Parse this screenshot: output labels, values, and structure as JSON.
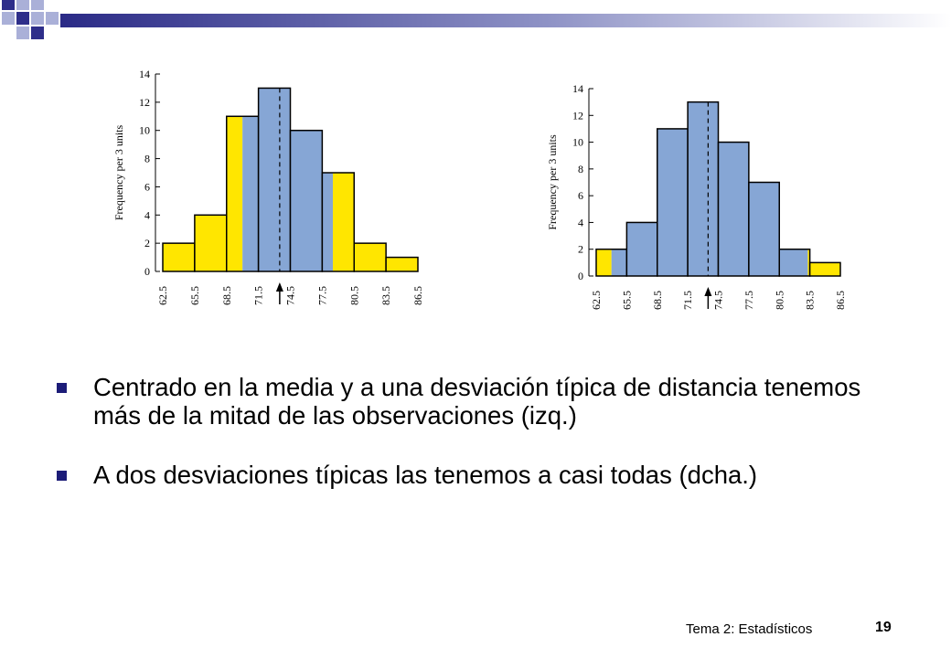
{
  "chart_data": [
    {
      "type": "bar",
      "categories": [
        "62.5-65.5",
        "65.5-68.5",
        "68.5-71.5",
        "71.5-74.5",
        "74.5-77.5",
        "77.5-80.5",
        "80.5-83.5",
        "83.5-86.5"
      ],
      "bin_edges": [
        62.5,
        65.5,
        68.5,
        71.5,
        74.5,
        77.5,
        80.5,
        83.5,
        86.5
      ],
      "bin_edge_labels": [
        "62.5",
        "65.5",
        "68.5",
        "71.5",
        "74.5",
        "77.5",
        "80.5",
        "83.5",
        "86.5"
      ],
      "values": [
        2,
        4,
        11,
        13,
        10,
        7,
        2,
        1
      ],
      "ylabel": "Frequency per 3 units",
      "xlabel": "",
      "ylim": [
        0,
        14
      ],
      "yticks": [
        "0",
        "2",
        "4",
        "6",
        "8",
        "10",
        "12",
        "14"
      ],
      "mean": 73.5,
      "highlight_range": [
        70.0,
        78.5
      ],
      "colors": {
        "inside": "#86a6d5",
        "outside": "#ffe600"
      }
    },
    {
      "type": "bar",
      "categories": [
        "62.5-65.5",
        "65.5-68.5",
        "68.5-71.5",
        "71.5-74.5",
        "74.5-77.5",
        "77.5-80.5",
        "80.5-83.5",
        "83.5-86.5"
      ],
      "bin_edges": [
        62.5,
        65.5,
        68.5,
        71.5,
        74.5,
        77.5,
        80.5,
        83.5,
        86.5
      ],
      "bin_edge_labels": [
        "62.5",
        "65.5",
        "68.5",
        "71.5",
        "74.5",
        "77.5",
        "80.5",
        "83.5",
        "86.5"
      ],
      "values": [
        2,
        4,
        11,
        13,
        10,
        7,
        2,
        1
      ],
      "ylabel": "Frequency per 3 units",
      "xlabel": "",
      "ylim": [
        0,
        14
      ],
      "yticks": [
        "0",
        "2",
        "4",
        "6",
        "8",
        "10",
        "12",
        "14"
      ],
      "mean": 73.5,
      "highlight_range": [
        64.0,
        83.3
      ],
      "colors": {
        "inside": "#86a6d5",
        "outside": "#ffe600"
      }
    }
  ],
  "bullets": [
    "Centrado en la media y a una desviación típica de distancia tenemos más de la mitad de las observaciones (izq.)",
    "A dos desviaciones típicas las tenemos a casi todas (dcha.)"
  ],
  "footer": {
    "text": "Tema 2: Estadísticos",
    "page_number": "19"
  },
  "colors": {
    "bullet": "#1c1c78",
    "decor_square_dark": "#2e2e8a",
    "decor_square_light": "#aab0d8",
    "decor_bar": "#2a2a86"
  }
}
